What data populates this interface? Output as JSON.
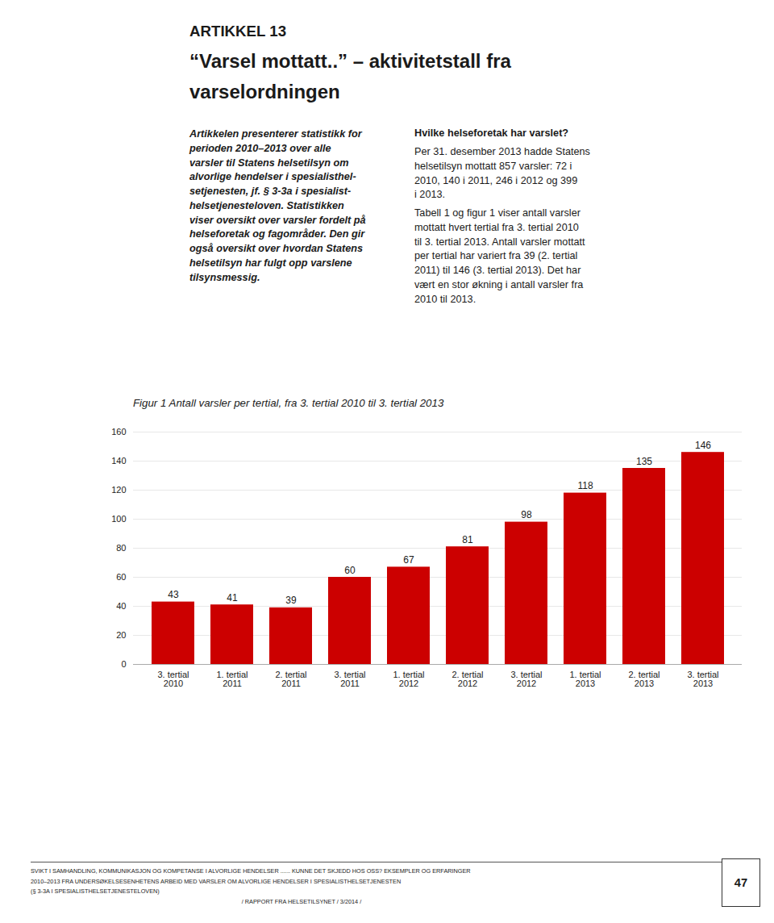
{
  "page_title": "ARTIKKEL 13",
  "subtitle_line1": "“Varsel mottatt..” – aktivitetstall fra",
  "subtitle_line2": "varselordningen",
  "left_text": "Artikkelen presenterer statistikk for\nperioden 2010–2013 over alle\nvarsler til Statens helsetilsyn om\nalvorlige hendelser i spesialisthel-\nsetjenesten, jf. § 3-3a i spesialist-\nhelsetjenesteloven. Statistikken\nviser oversikt over varsler fordelt på\nhelseforetak og fagområder. Den gir\nogså oversikt over hvordan Statens\nhelsetilsyn har fulgt opp varslene\ntilsynsmessig.",
  "right_heading": "Hvilke helseforetak har varslet?",
  "right_text1": "Per 31. desember 2013 hadde Statens\nhelsetilsyn mottatt 857 varsler: 72 i\n2010, 140 i 2011, 246 i 2012 og 399\ni 2013.",
  "right_text2": "Tabell 1 og figur 1 viser antall varsler\nmottatt hvert tertial fra 3. tertial 2010\ntil 3. tertial 2013. Antall varsler mottatt\nper tertial har variert fra 39 (2. tertial\n2011) til 146 (3. tertial 2013). Det har\nvært en stor økning i antall varsler fra\n2010 til 2013.",
  "footer_line1": "SVIKT I SAMHANDLING, KOMMUNIKASJON OG KOMPETANSE I ALVORLIGE HENDELSER ...... KUNNE DET SKJEDD HOS OSS? EKSEMPLER OG ERFARINGER",
  "footer_line2": "2010–2013 FRA UNDERSØKELSESENHETENS ARBEID MED VARSLER OM ALVORLIGE HENDELSER I SPESIALISTHELSETJENESTEN",
  "footer_line3": "(§ 3-3A I SPESIALISTHELSETJENESTELOVEN)",
  "footer_line4": "/ RAPPORT FRA HELSETILSYNET / 3/2014 /",
  "footer_page": "47",
  "chart_data": {
    "type": "bar",
    "title": "Figur 1 Antall varsler per tertial, fra 3. tertial 2010 til 3. tertial 2013",
    "categories": [
      "3. tertial\n2010",
      "1. tertial\n2011",
      "2. tertial\n2011",
      "3. tertial\n2011",
      "1. tertial\n2012",
      "2. tertial\n2012",
      "3. tertial\n2012",
      "1. tertial\n2013",
      "2. tertial\n2013",
      "3. tertial\n2013"
    ],
    "values": [
      43,
      41,
      39,
      60,
      67,
      81,
      98,
      118,
      135,
      146
    ],
    "color": "#cc0000",
    "ylim": [
      0,
      160
    ],
    "yticks": [
      0,
      20,
      40,
      60,
      80,
      100,
      120,
      140,
      160
    ],
    "grid": true,
    "data_labels": true
  }
}
